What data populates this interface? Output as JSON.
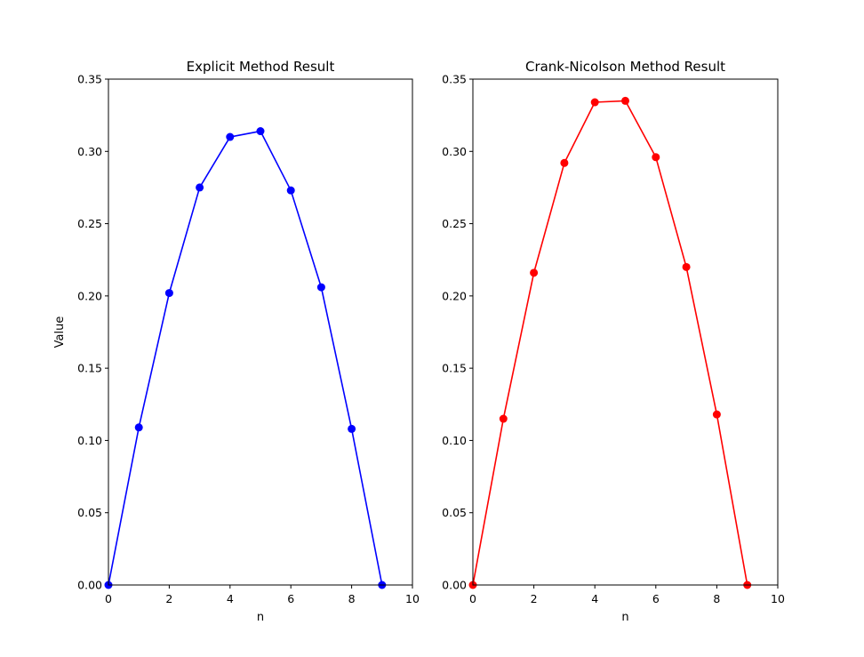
{
  "chart_data": [
    {
      "type": "line",
      "title": "Explicit Method Result",
      "xlabel": "n",
      "ylabel": "Value",
      "xlim": [
        0,
        10
      ],
      "ylim": [
        0,
        0.35
      ],
      "xticks": [
        "0",
        "2",
        "4",
        "6",
        "8",
        "10"
      ],
      "yticks": [
        "0.00",
        "0.05",
        "0.10",
        "0.15",
        "0.20",
        "0.25",
        "0.30",
        "0.35"
      ],
      "grid": false,
      "marker": "circle",
      "color": "#0000ff",
      "x": [
        0,
        1,
        2,
        3,
        4,
        5,
        6,
        7,
        8,
        9
      ],
      "values": [
        0.0,
        0.109,
        0.202,
        0.275,
        0.31,
        0.314,
        0.273,
        0.206,
        0.108,
        0.0
      ]
    },
    {
      "type": "line",
      "title": "Crank-Nicolson Method Result",
      "xlabel": "n",
      "ylabel": "",
      "xlim": [
        0,
        10
      ],
      "ylim": [
        0,
        0.35
      ],
      "xticks": [
        "0",
        "2",
        "4",
        "6",
        "8",
        "10"
      ],
      "yticks": [
        "0.00",
        "0.05",
        "0.10",
        "0.15",
        "0.20",
        "0.25",
        "0.30",
        "0.35"
      ],
      "grid": false,
      "marker": "circle",
      "color": "#ff0000",
      "x": [
        0,
        1,
        2,
        3,
        4,
        5,
        6,
        7,
        8,
        9
      ],
      "values": [
        0.0,
        0.115,
        0.216,
        0.292,
        0.334,
        0.335,
        0.296,
        0.22,
        0.118,
        0.0
      ]
    }
  ]
}
